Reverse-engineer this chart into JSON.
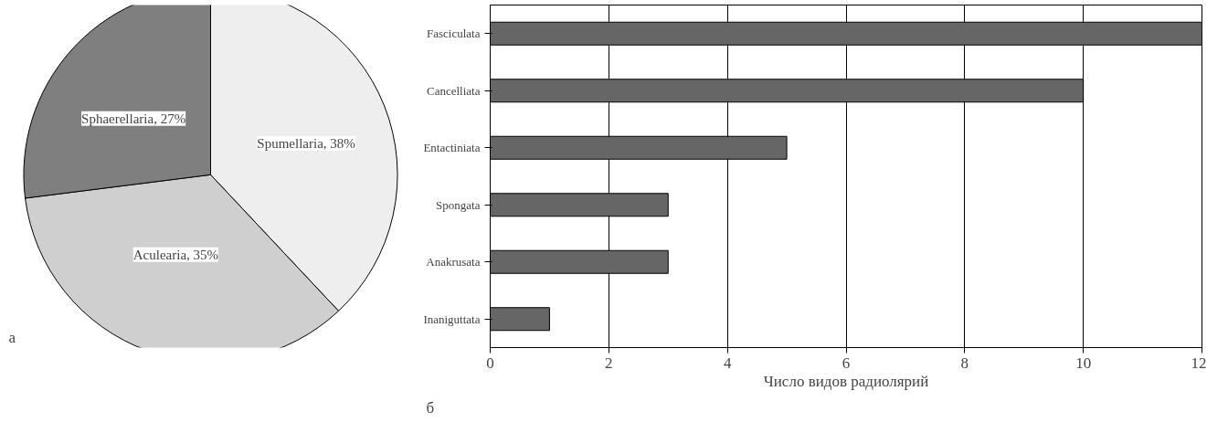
{
  "chart_data": [
    {
      "type": "pie",
      "categories": [
        "Spumellaria",
        "Aculearia",
        "Sphaerellaria"
      ],
      "values": [
        38,
        35,
        27
      ],
      "value_labels": [
        "38%",
        "35%",
        "27%"
      ],
      "colors": [
        "#eeeeee",
        "#cfcfcf",
        "#7f7f7f"
      ],
      "annotations": [
        "а"
      ]
    },
    {
      "type": "bar",
      "orientation": "horizontal",
      "categories": [
        "Fasciculata",
        "Cancelliata",
        "Entactiniata",
        "Spongata",
        "Anakrusata",
        "Inaniguttata"
      ],
      "values": [
        12,
        10,
        5,
        3,
        3,
        1
      ],
      "color": "#666666",
      "xlim": [
        0,
        12
      ],
      "xticks": [
        0,
        2,
        4,
        6,
        8,
        10,
        12
      ],
      "grid": "x",
      "xlabel": "Число видов радиолярий",
      "annotations": [
        "б"
      ]
    }
  ]
}
